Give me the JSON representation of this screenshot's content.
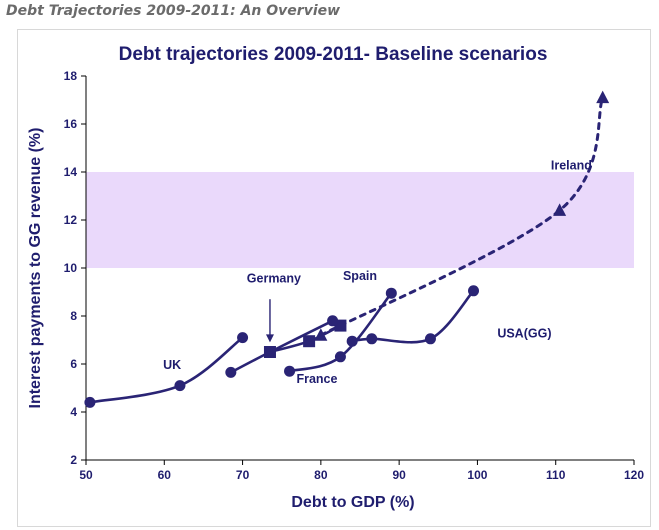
{
  "page": {
    "heading": "Debt Trajectories 2009-2011: An Overview"
  },
  "colors": {
    "series": "#2a2475",
    "band": "#ead9fb",
    "text": "#1f1d6e",
    "frame": "#d8d8d8"
  },
  "chart_data": {
    "type": "line",
    "title": "Debt trajectories 2009-2011- Baseline scenarios",
    "xlabel": "Debt to GDP (%)",
    "ylabel": "Interest payments to GG revenue (%)",
    "xlim": [
      50,
      120
    ],
    "ylim": [
      2,
      18
    ],
    "xticks": [
      "50",
      "60",
      "70",
      "80",
      "90",
      "100",
      "110",
      "120"
    ],
    "yticks": [
      "2",
      "4",
      "6",
      "8",
      "10",
      "12",
      "14",
      "16",
      "18"
    ],
    "grid": false,
    "legend": "none",
    "shaded_band": {
      "y_from": 10,
      "y_to": 14
    },
    "series": [
      {
        "name": "UK",
        "marker": "circle",
        "line": "solid",
        "points": [
          [
            50.5,
            4.4
          ],
          [
            62,
            5.1
          ],
          [
            70,
            7.1
          ]
        ]
      },
      {
        "name": "Germany",
        "marker": "square",
        "line": "solid",
        "points": [
          [
            73.5,
            6.5
          ],
          [
            78.5,
            6.95
          ],
          [
            82.5,
            7.6
          ]
        ]
      },
      {
        "name": "France",
        "marker": "circle",
        "line": "solid",
        "points": [
          [
            68.5,
            5.65
          ],
          [
            73.5,
            6.5
          ],
          [
            81.5,
            7.8
          ]
        ]
      },
      {
        "name": "Spain",
        "marker": "circle",
        "line": "solid",
        "points": [
          [
            76,
            5.7
          ],
          [
            82.5,
            6.3
          ],
          [
            89,
            8.95
          ]
        ]
      },
      {
        "name": "USA(GG)",
        "marker": "circle",
        "line": "solid",
        "points": [
          [
            84,
            6.95
          ],
          [
            86.5,
            7.05
          ],
          [
            94,
            7.05
          ],
          [
            99.5,
            9.05
          ]
        ]
      },
      {
        "name": "Ireland",
        "marker": "triangle",
        "line": "dashed",
        "points": [
          [
            80,
            7.2
          ],
          [
            110.5,
            12.4
          ],
          [
            116,
            17.1
          ]
        ]
      }
    ],
    "labels": [
      {
        "text": "UK",
        "x": 61,
        "y": 5.8
      },
      {
        "text": "Germany",
        "x": 74,
        "y": 9.4
      },
      {
        "text": "France",
        "x": 79.5,
        "y": 5.2
      },
      {
        "text": "Spain",
        "x": 85,
        "y": 9.5
      },
      {
        "text": "USA(GG)",
        "x": 106,
        "y": 7.1
      },
      {
        "text": "Ireland",
        "x": 112,
        "y": 14.1
      }
    ],
    "annotations": [
      {
        "type": "arrow",
        "from": [
          73.5,
          8.7
        ],
        "to": [
          73.5,
          6.9
        ],
        "label": "Germany"
      }
    ]
  }
}
